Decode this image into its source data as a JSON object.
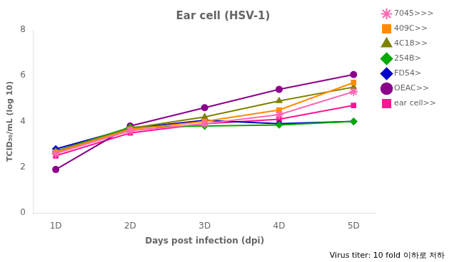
{
  "chart_data": {
    "type": "line",
    "title": "Ear cell (HSV-1)",
    "xlabel": "Days post infection (dpi)",
    "ylabel": "TCID₅₀/mL (log 10)",
    "x": [
      1,
      2,
      3,
      4,
      5
    ],
    "xlim": [
      0.7,
      5.3
    ],
    "xticks": [
      {
        "value": 1,
        "label": "1D"
      },
      {
        "value": 2,
        "label": "2D"
      },
      {
        "value": 3,
        "label": "3D"
      },
      {
        "value": 4,
        "label": "4D"
      },
      {
        "value": 5,
        "label": "5D"
      }
    ],
    "ylim": [
      0,
      8
    ],
    "yticks": [
      0,
      2,
      4,
      6,
      8
    ],
    "grid": false,
    "legend": "right",
    "annotation": "Virus titer: 10 fold 이하로 저하",
    "series": [
      {
        "name": "7045>>>",
        "color": "#FF69B4",
        "marker": "star",
        "values": [
          2.6,
          3.6,
          3.9,
          4.3,
          5.3
        ]
      },
      {
        "name": "409C>>",
        "color": "#FF8C00",
        "marker": "square",
        "values": [
          2.65,
          3.65,
          4.0,
          4.5,
          5.7
        ]
      },
      {
        "name": "4C18>>",
        "color": "#808000",
        "marker": "triangle",
        "values": [
          2.7,
          3.7,
          4.2,
          4.9,
          5.5
        ]
      },
      {
        "name": "254B>",
        "color": "#00AA00",
        "marker": "diamond",
        "values": [
          2.7,
          3.75,
          3.8,
          3.85,
          4.0
        ]
      },
      {
        "name": "FD54>",
        "color": "#0000CD",
        "marker": "diamond",
        "values": [
          2.8,
          3.7,
          4.05,
          3.9,
          4.0
        ]
      },
      {
        "name": "OEAC>>",
        "color": "#8B008B",
        "marker": "circle",
        "values": [
          1.9,
          3.8,
          4.6,
          5.4,
          6.05
        ]
      },
      {
        "name": "ear cell>>",
        "color": "#FF1493",
        "marker": "square",
        "values": [
          2.5,
          3.5,
          3.9,
          4.1,
          4.7
        ]
      }
    ]
  }
}
